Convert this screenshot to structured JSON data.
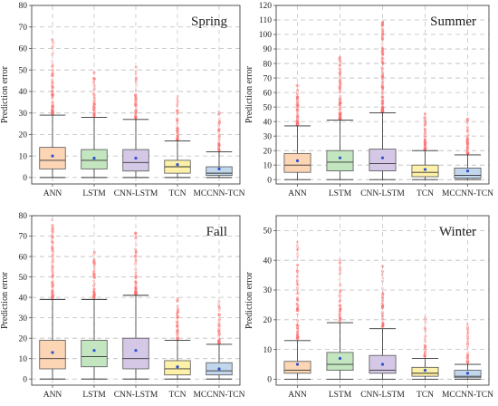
{
  "chart_data": [
    {
      "type": "box",
      "title": "Spring",
      "ylabel": "Prediction error",
      "ylim": [
        -3,
        80
      ],
      "yticks": [
        0,
        10,
        20,
        30,
        40,
        50,
        60,
        70,
        80
      ],
      "grid": true,
      "categories": [
        "ANN",
        "LSTM",
        "CNN-LSTM",
        "TCN",
        "MCCNN-TCN"
      ],
      "colors": [
        "#fcd5b5",
        "#c3e6c0",
        "#d5c8e6",
        "#fdf0a8",
        "#c2d6ec"
      ],
      "boxes": [
        {
          "whislo": 0,
          "q1": 4,
          "med": 8,
          "q3": 14,
          "whishi": 29,
          "mean": 10,
          "outliers_max": 67
        },
        {
          "whislo": 0,
          "q1": 4,
          "med": 8,
          "q3": 13,
          "whishi": 28,
          "mean": 9,
          "outliers_max": 50
        },
        {
          "whislo": 0,
          "q1": 3,
          "med": 7,
          "q3": 13,
          "whishi": 27,
          "mean": 9,
          "outliers_max": 53
        },
        {
          "whislo": 0,
          "q1": 2,
          "med": 5,
          "q3": 8,
          "whishi": 17,
          "mean": 6,
          "outliers_max": 39
        },
        {
          "whislo": 0,
          "q1": 1,
          "med": 2,
          "q3": 5,
          "whishi": 12,
          "mean": 4,
          "outliers_max": 31
        }
      ]
    },
    {
      "type": "box",
      "title": "Summer",
      "ylabel": "Prediction error",
      "ylim": [
        -3,
        120
      ],
      "yticks": [
        0,
        10,
        20,
        30,
        40,
        50,
        60,
        70,
        80,
        90,
        100,
        110,
        120
      ],
      "grid": true,
      "categories": [
        "ANN",
        "LSTM",
        "CNN-LSTM",
        "TCN",
        "MCCNN-TCN"
      ],
      "colors": [
        "#fcd5b5",
        "#c3e6c0",
        "#d5c8e6",
        "#fdf0a8",
        "#c2d6ec"
      ],
      "boxes": [
        {
          "whislo": 0,
          "q1": 5,
          "med": 10,
          "q3": 18,
          "whishi": 37,
          "mean": 13,
          "outliers_max": 66
        },
        {
          "whislo": 0,
          "q1": 6,
          "med": 12,
          "q3": 20,
          "whishi": 41,
          "mean": 15,
          "outliers_max": 85
        },
        {
          "whislo": 0,
          "q1": 6,
          "med": 11,
          "q3": 21,
          "whishi": 46,
          "mean": 15,
          "outliers_max": 110
        },
        {
          "whislo": 0,
          "q1": 2,
          "med": 5,
          "q3": 10,
          "whishi": 20,
          "mean": 7,
          "outliers_max": 46
        },
        {
          "whislo": 0,
          "q1": 1,
          "med": 3,
          "q3": 8,
          "whishi": 17,
          "mean": 6,
          "outliers_max": 42
        }
      ]
    },
    {
      "type": "box",
      "title": "Fall",
      "ylabel": "Prediction error",
      "ylim": [
        -3,
        80
      ],
      "yticks": [
        0,
        10,
        20,
        30,
        40,
        50,
        60,
        70,
        80
      ],
      "grid": true,
      "categories": [
        "ANN",
        "LSTM",
        "CNN-LSTM",
        "TCN",
        "MCCNN-TCN"
      ],
      "colors": [
        "#fcd5b5",
        "#c3e6c0",
        "#d5c8e6",
        "#fdf0a8",
        "#c2d6ec"
      ],
      "boxes": [
        {
          "whislo": 0,
          "q1": 5,
          "med": 10,
          "q3": 19,
          "whishi": 39,
          "mean": 13,
          "outliers_max": 78
        },
        {
          "whislo": 0,
          "q1": 6,
          "med": 11,
          "q3": 19,
          "whishi": 39,
          "mean": 14,
          "outliers_max": 64
        },
        {
          "whislo": 0,
          "q1": 5,
          "med": 10,
          "q3": 20,
          "whishi": 41,
          "mean": 14,
          "outliers_max": 72
        },
        {
          "whislo": 0,
          "q1": 2,
          "med": 5,
          "q3": 9,
          "whishi": 19,
          "mean": 6,
          "outliers_max": 40
        },
        {
          "whislo": 0,
          "q1": 2,
          "med": 4,
          "q3": 8,
          "whishi": 17,
          "mean": 5,
          "outliers_max": 38
        }
      ]
    },
    {
      "type": "box",
      "title": "Winter",
      "ylabel": "Prediction error",
      "ylim": [
        -2,
        55
      ],
      "yticks": [
        0,
        10,
        20,
        30,
        40,
        50
      ],
      "grid": true,
      "categories": [
        "ANN",
        "LSTM",
        "CNN-LSTM",
        "TCN",
        "MCCNN-TCN"
      ],
      "colors": [
        "#fcd5b5",
        "#c3e6c0",
        "#d5c8e6",
        "#fdf0a8",
        "#c2d6ec"
      ],
      "boxes": [
        {
          "whislo": 0,
          "q1": 2,
          "med": 3,
          "q3": 6,
          "whishi": 13,
          "mean": 5,
          "outliers_max": 47
        },
        {
          "whislo": 0,
          "q1": 3,
          "med": 5,
          "q3": 9,
          "whishi": 19,
          "mean": 7,
          "outliers_max": 41
        },
        {
          "whislo": 0,
          "q1": 2,
          "med": 3,
          "q3": 8,
          "whishi": 17,
          "mean": 5,
          "outliers_max": 40
        },
        {
          "whislo": 0,
          "q1": 1,
          "med": 2,
          "q3": 4,
          "whishi": 7,
          "mean": 3,
          "outliers_max": 21
        },
        {
          "whislo": 0,
          "q1": 0.5,
          "med": 1,
          "q3": 3,
          "whishi": 5,
          "mean": 2,
          "outliers_max": 20
        }
      ]
    }
  ]
}
